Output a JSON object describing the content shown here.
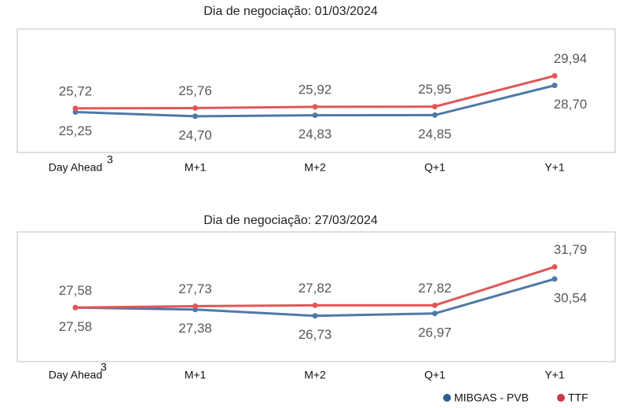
{
  "chart_data": [
    {
      "type": "line",
      "title": "Dia de negociação: 01/03/2024",
      "categories": [
        "Day Ahead",
        "M+1",
        "M+2",
        "Q+1",
        "Y+1"
      ],
      "category_footnote": "3",
      "ylim": [
        20,
        36
      ],
      "series": [
        {
          "color": "#4e79a7",
          "values": [
            25.25,
            24.7,
            24.83,
            24.85,
            28.7
          ],
          "value_labels": [
            "25,25",
            "24,70",
            "24,83",
            "24,85",
            "28,70"
          ]
        },
        {
          "color": "#e15759",
          "values": [
            25.72,
            25.76,
            25.92,
            25.95,
            29.94
          ],
          "value_labels": [
            "25,72",
            "25,76",
            "25,92",
            "25,95",
            "29,94"
          ]
        }
      ]
    },
    {
      "type": "line",
      "title": "Dia de negociação: 27/03/2024",
      "categories": [
        "Day Ahead",
        "M+1",
        "M+2",
        "Q+1",
        "Y+1"
      ],
      "category_footnote": "3",
      "ylim": [
        22,
        35.4
      ],
      "series": [
        {
          "color": "#4e79a7",
          "values": [
            27.58,
            27.38,
            26.73,
            26.97,
            30.54
          ],
          "value_labels": [
            "27,58",
            "27,38",
            "26,73",
            "26,97",
            "30,54"
          ]
        },
        {
          "color": "#e15759",
          "values": [
            27.58,
            27.73,
            27.82,
            27.82,
            31.79
          ],
          "value_labels": [
            "27,58",
            "27,73",
            "27,82",
            "27,82",
            "31,79"
          ]
        }
      ]
    }
  ],
  "legend": [
    {
      "name": "MIBGAS - PVB",
      "color": "#2f5f8f"
    },
    {
      "name": "TTF",
      "color": "#c8374a"
    }
  ]
}
